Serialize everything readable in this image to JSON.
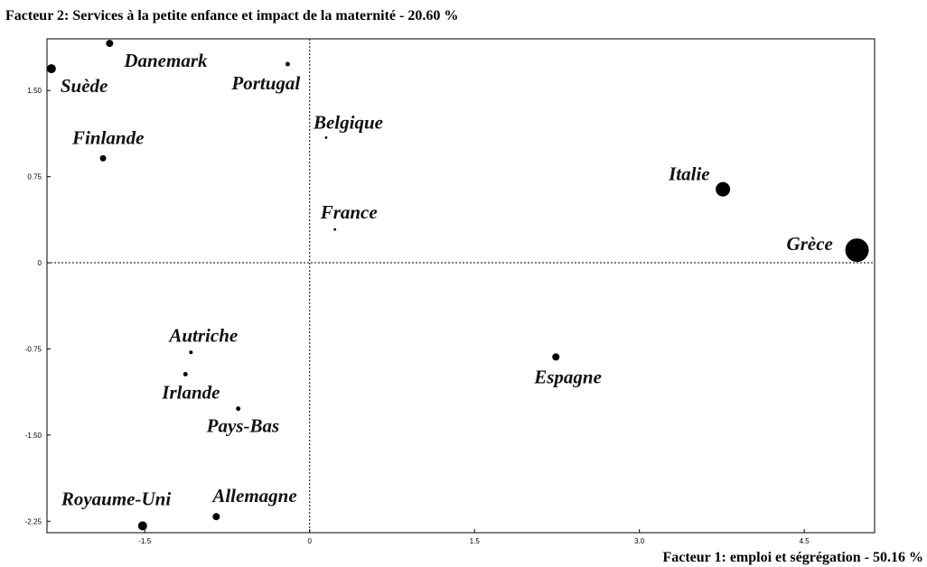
{
  "chart_data": {
    "type": "scatter",
    "y_title": "Facteur 2: Services à la petite enfance et impact de la maternité  -  20.60 %",
    "x_title": "Facteur 1: emploi et ségrégation   -  50.16 %",
    "labels": [
      "Suède",
      "Danemark",
      "Portugal",
      "Belgique",
      "Finlande",
      "France",
      "Italie",
      "Grèce",
      "Autriche",
      "Irlande",
      "Pays-Bas",
      "Espagne",
      "Royaume-Uni",
      "Allemagne"
    ],
    "x": [
      -2.35,
      -1.82,
      -0.2,
      0.15,
      -1.88,
      0.23,
      3.76,
      4.98,
      -1.08,
      -1.13,
      -0.65,
      2.24,
      -1.52,
      -0.85
    ],
    "y": [
      1.69,
      1.91,
      1.73,
      1.09,
      0.91,
      0.29,
      0.64,
      0.11,
      -0.78,
      -0.97,
      -1.27,
      -0.82,
      -2.29,
      -2.21
    ],
    "sizes": [
      25,
      16,
      6,
      2,
      12,
      2,
      64,
      169,
      4,
      6,
      6,
      16,
      25,
      16
    ],
    "color": "#000000",
    "xlim": [
      -2.39,
      5.14
    ],
    "ylim": [
      -2.35,
      1.95
    ],
    "xticks": [
      -1.5,
      0,
      {
        "value": 3.0,
        "label": "3.0"
      },
      1.5,
      4.5
    ],
    "yticks": [
      {
        "value": -2.25,
        "label": "-2.25"
      },
      {
        "value": -1.5,
        "label": "-1.50"
      },
      {
        "value": -0.75,
        "label": "-0.75"
      },
      0,
      {
        "value": 0.75,
        "label": "0.75"
      },
      {
        "value": 1.5,
        "label": "1.50"
      }
    ]
  }
}
